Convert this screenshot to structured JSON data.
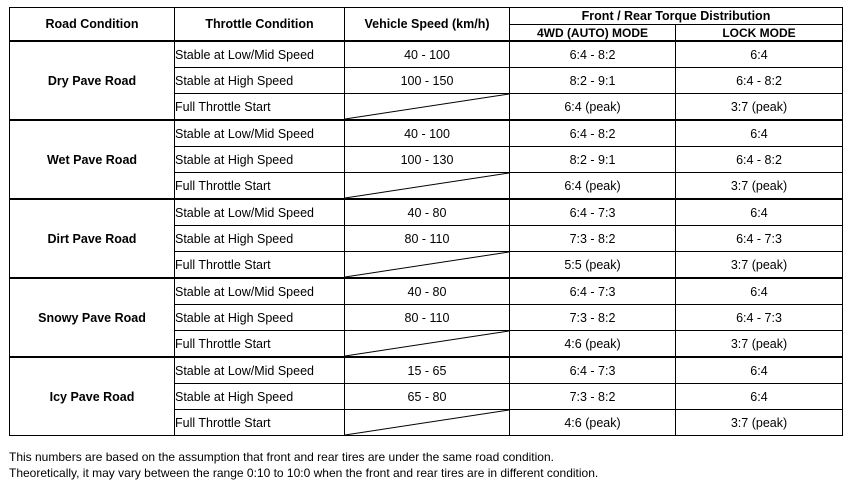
{
  "headers": {
    "road_condition": "Road Condition",
    "throttle_condition": "Throttle Condition",
    "vehicle_speed": "Vehicle Speed (km/h)",
    "torque_distribution": "Front / Rear Torque Distribution",
    "mode_4wd": "4WD (AUTO) MODE",
    "mode_lock": "LOCK MODE"
  },
  "groups": [
    {
      "road": "Dry Pave Road",
      "rows": [
        {
          "throttle": "Stable at Low/Mid Speed",
          "speed": "40 - 100",
          "auto": "6:4 - 8:2",
          "lock": "6:4"
        },
        {
          "throttle": "Stable at High Speed",
          "speed": "100 - 150",
          "auto": "8:2 - 9:1",
          "lock": "6:4 - 8:2"
        },
        {
          "throttle": "Full Throttle Start",
          "speed": "",
          "auto": "6:4 (peak)",
          "lock": "3:7 (peak)"
        }
      ]
    },
    {
      "road": "Wet Pave Road",
      "rows": [
        {
          "throttle": "Stable at Low/Mid Speed",
          "speed": "40 - 100",
          "auto": "6:4 - 8:2",
          "lock": "6:4"
        },
        {
          "throttle": "Stable at High Speed",
          "speed": "100 - 130",
          "auto": "8:2 - 9:1",
          "lock": "6:4 - 8:2"
        },
        {
          "throttle": "Full Throttle Start",
          "speed": "",
          "auto": "6:4 (peak)",
          "lock": "3:7 (peak)"
        }
      ]
    },
    {
      "road": "Dirt Pave Road",
      "rows": [
        {
          "throttle": "Stable at Low/Mid Speed",
          "speed": "40 - 80",
          "auto": "6:4 - 7:3",
          "lock": "6:4"
        },
        {
          "throttle": "Stable at High Speed",
          "speed": "80 - 110",
          "auto": "7:3 - 8:2",
          "lock": "6:4 - 7:3"
        },
        {
          "throttle": "Full Throttle Start",
          "speed": "",
          "auto": "5:5 (peak)",
          "lock": "3:7 (peak)"
        }
      ]
    },
    {
      "road": "Snowy Pave Road",
      "rows": [
        {
          "throttle": "Stable at Low/Mid Speed",
          "speed": "40 - 80",
          "auto": "6:4 - 7:3",
          "lock": "6:4"
        },
        {
          "throttle": "Stable at High Speed",
          "speed": "80 - 110",
          "auto": "7:3 - 8:2",
          "lock": "6:4 - 7:3"
        },
        {
          "throttle": "Full Throttle Start",
          "speed": "",
          "auto": "4:6 (peak)",
          "lock": "3:7 (peak)"
        }
      ]
    },
    {
      "road": "Icy Pave Road",
      "rows": [
        {
          "throttle": "Stable at Low/Mid Speed",
          "speed": "15 - 65",
          "auto": "6:4 - 7:3",
          "lock": "6:4"
        },
        {
          "throttle": "Stable at High Speed",
          "speed": "65 - 80",
          "auto": "7:3 - 8:2",
          "lock": "6:4"
        },
        {
          "throttle": "Full Throttle Start",
          "speed": "",
          "auto": "4:6 (peak)",
          "lock": "3:7 (peak)"
        }
      ]
    }
  ],
  "notes": [
    "This numbers are based on the assumption that front and rear tires are under the same road condition.",
    "Theoretically, it may vary between the range 0:10 to 10:0 when the front and rear tires are in different condition."
  ]
}
